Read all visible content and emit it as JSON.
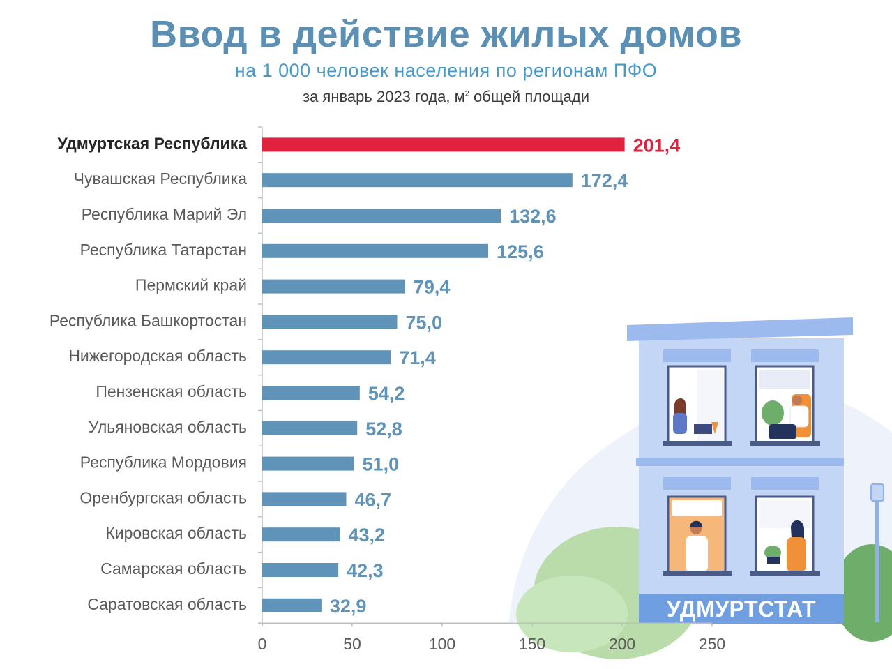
{
  "header": {
    "title": "Ввод в действие жилых домов",
    "subtitle": "на 1 000 человек населения по регионам ПФО",
    "subtitle2_prefix": "за январь 2023 года, м",
    "subtitle2_sup": "2",
    "subtitle2_suffix": " общей площади"
  },
  "brand_label": "УДМУРТСТАТ",
  "colors": {
    "highlight": "#e0223f",
    "bar": "#5f93b8",
    "label_highlight": "#e0223f",
    "label": "#5f93b8"
  },
  "chart_data": {
    "type": "bar",
    "orientation": "horizontal",
    "categories": [
      "Удмуртская Республика",
      "Чувашская Республика",
      "Республика  Марий Эл",
      "Республика Татарстан",
      "Пермский край",
      "Республика Башкортостан",
      "Нижегородская область",
      "Пензенская область",
      "Ульяновская область",
      "Республика Мордовия",
      "Оренбургская область",
      "Кировская область",
      "Самарская область",
      "Саратовская область"
    ],
    "values": [
      201.4,
      172.4,
      132.6,
      125.6,
      79.4,
      75.0,
      71.4,
      54.2,
      52.8,
      51.0,
      46.7,
      43.2,
      42.3,
      32.9
    ],
    "value_labels": [
      "201,4",
      "172,4",
      "132,6",
      "125,6",
      "79,4",
      "75,0",
      "71,4",
      "54,2",
      "52,8",
      "51,0",
      "46,7",
      "43,2",
      "42,3",
      "32,9"
    ],
    "highlight_index": 0,
    "xlim": [
      0,
      250
    ],
    "xticks": [
      0,
      50,
      100,
      150,
      200,
      250
    ],
    "xtick_labels": [
      "0",
      "50",
      "100",
      "150",
      "200",
      "250"
    ],
    "grid": false,
    "legend": "none"
  }
}
